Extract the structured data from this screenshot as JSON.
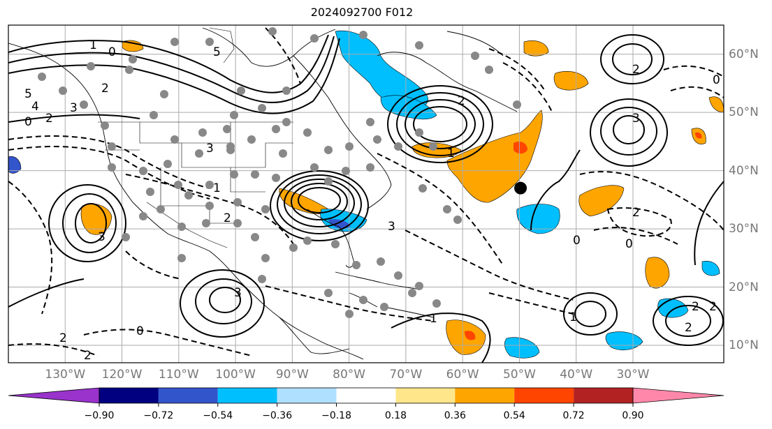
{
  "title": "2024092700 F012",
  "map": {
    "projection": "plate-carree",
    "lon_range": [
      -140,
      -14
    ],
    "lat_range": [
      7,
      65
    ],
    "lon_labels": [
      "130°W",
      "120°W",
      "110°W",
      "100°W",
      "90°W",
      "80°W",
      "70°W",
      "60°W",
      "50°W",
      "40°W",
      "30°W"
    ],
    "lat_labels": [
      "60°N",
      "50°N",
      "40°N",
      "30°N",
      "20°N",
      "10°N"
    ],
    "grid": true,
    "contour_labels": [
      "5",
      "4",
      "3",
      "2",
      "1",
      "0",
      "2",
      "0",
      "1",
      "5",
      "3",
      "2",
      "3",
      "2",
      "2",
      "3",
      "0",
      "2",
      "3",
      "1",
      "2",
      "0",
      "2",
      "1",
      "2",
      "2",
      "0",
      "1",
      "3",
      "0",
      "2"
    ],
    "marker": {
      "lon": -49.8,
      "lat": 37.0,
      "name": "point marker"
    }
  },
  "colorbar": {
    "colors": [
      "#9933cc",
      "#000080",
      "#3355cc",
      "#00bfff",
      "#b0e0ff",
      "#ffffff",
      "#ffe68a",
      "#ffa500",
      "#ff4500",
      "#b22222",
      "#ff88aa"
    ],
    "tick_labels": [
      "−0.90",
      "−0.72",
      "−0.54",
      "−0.36",
      "−0.18",
      "0.18",
      "0.36",
      "0.54",
      "0.72",
      "0.90"
    ],
    "extend": "both"
  }
}
